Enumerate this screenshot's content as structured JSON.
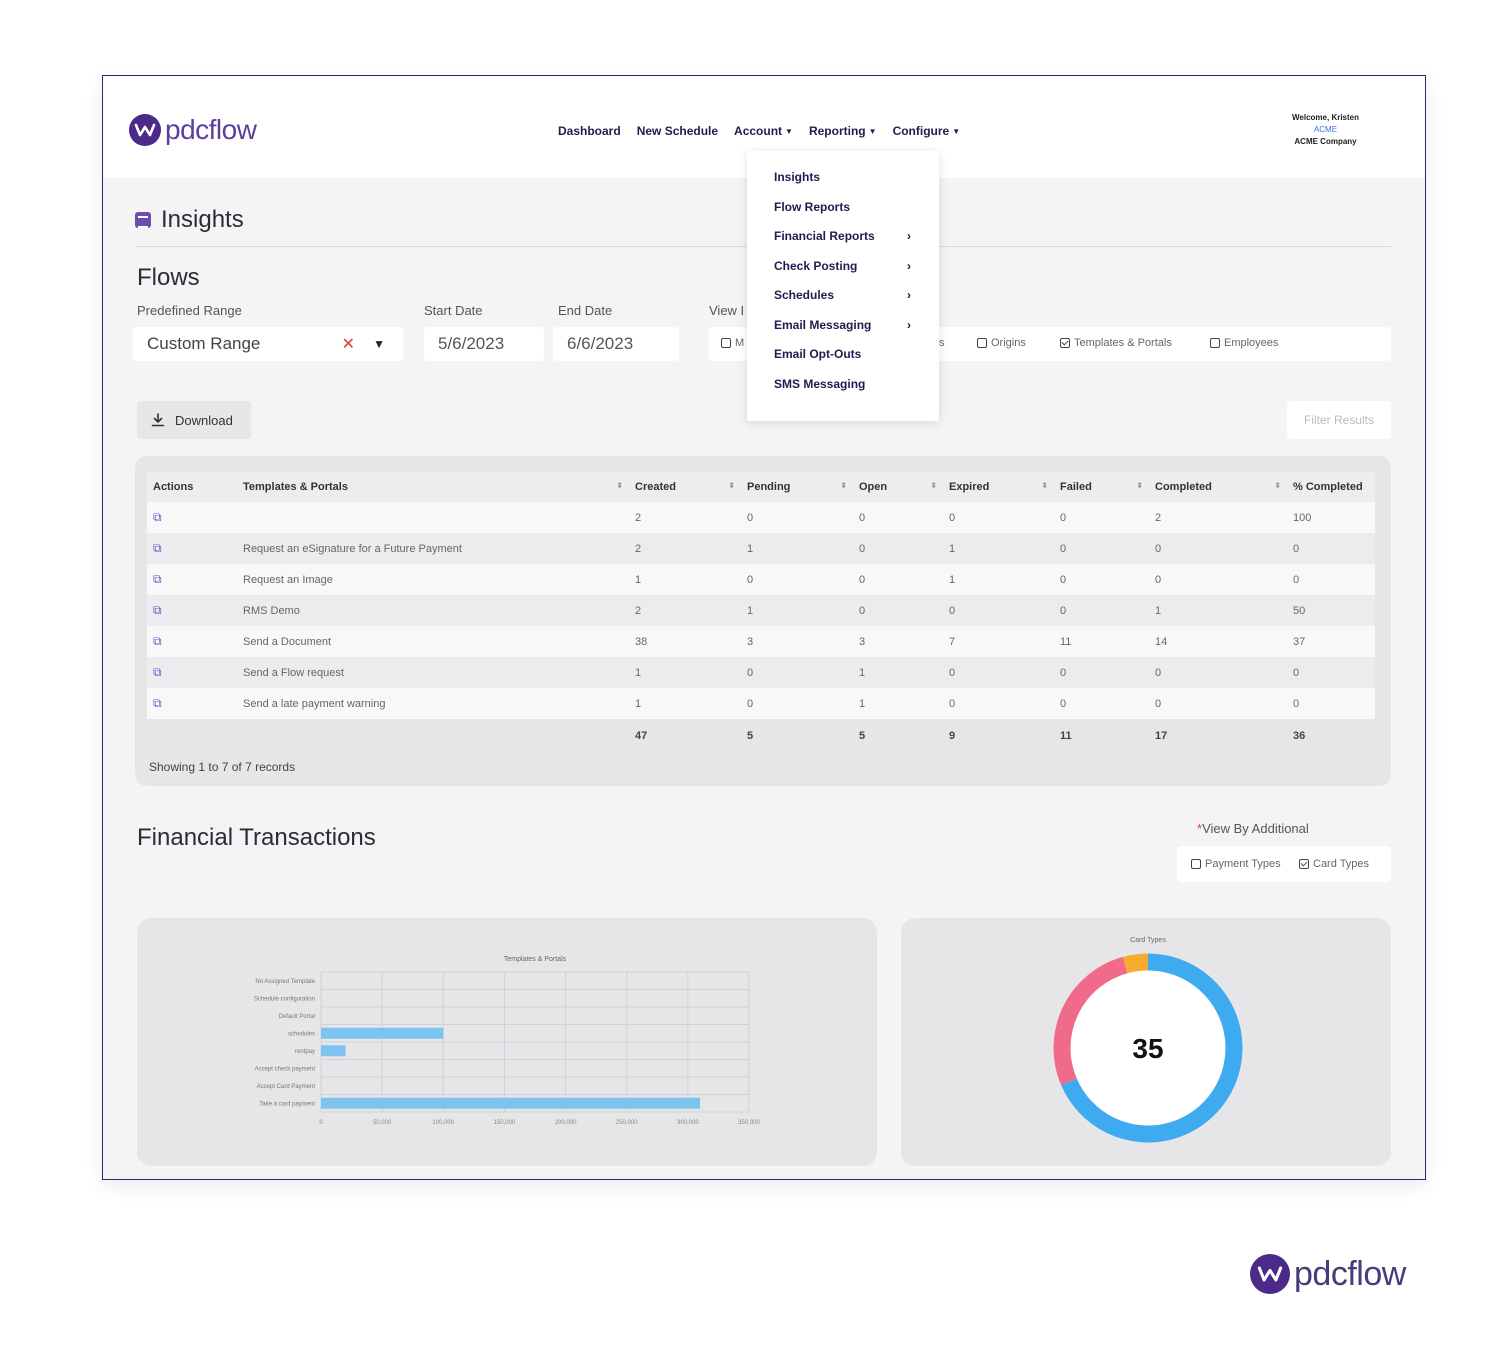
{
  "app": {
    "logo_text": "pdcflow"
  },
  "nav": {
    "items": [
      {
        "label": "Dashboard",
        "caret": false
      },
      {
        "label": "New Schedule",
        "caret": false
      },
      {
        "label": "Account",
        "caret": true
      },
      {
        "label": "Reporting",
        "caret": true
      },
      {
        "label": "Configure",
        "caret": true
      }
    ]
  },
  "user": {
    "welcome": "Welcome, Kristen",
    "acme": "ACME",
    "company": "ACME Company"
  },
  "page": {
    "title": "Insights"
  },
  "flows": {
    "title": "Flows",
    "predefined_label": "Predefined Range",
    "predefined_value": "Custom Range",
    "start_label": "Start Date",
    "start_value": "5/6/2023",
    "end_label": "End Date",
    "end_value": "6/6/2023",
    "view_label": "View I",
    "view_options": [
      {
        "label": "M",
        "checked": false
      },
      {
        "label": "s",
        "checked": false
      },
      {
        "label": "Origins",
        "checked": false
      },
      {
        "label": "Templates & Portals",
        "checked": true
      },
      {
        "label": "Employees",
        "checked": false
      }
    ],
    "download_label": "Download",
    "filter_placeholder": "Filter Results"
  },
  "reporting_menu": {
    "items": [
      {
        "label": "Insights",
        "arrow": ""
      },
      {
        "label": "Flow Reports",
        "arrow": ""
      },
      {
        "label": "Financial Reports",
        "arrow": "›"
      },
      {
        "label": "Check Posting",
        "arrow": "›"
      },
      {
        "label": "Schedules",
        "arrow": "›"
      },
      {
        "label": "Email Messaging",
        "arrow": "›"
      },
      {
        "label": "Email Opt-Outs",
        "arrow": ""
      },
      {
        "label": "SMS Messaging",
        "arrow": ""
      }
    ]
  },
  "table": {
    "headers": [
      "Actions",
      "Templates & Portals",
      "Created",
      "Pending",
      "Open",
      "Expired",
      "Failed",
      "Completed",
      "% Completed"
    ],
    "rows": [
      [
        "",
        "",
        "2",
        "0",
        "0",
        "0",
        "0",
        "2",
        "100"
      ],
      [
        "",
        "Request an eSignature for a Future Payment",
        "2",
        "1",
        "0",
        "1",
        "0",
        "0",
        "0"
      ],
      [
        "",
        "Request an Image",
        "1",
        "0",
        "0",
        "1",
        "0",
        "0",
        "0"
      ],
      [
        "",
        "RMS Demo",
        "2",
        "1",
        "0",
        "0",
        "0",
        "1",
        "50"
      ],
      [
        "",
        "Send a Document",
        "38",
        "3",
        "3",
        "7",
        "11",
        "14",
        "37"
      ],
      [
        "",
        "Send a Flow request",
        "1",
        "0",
        "1",
        "0",
        "0",
        "0",
        "0"
      ],
      [
        "",
        "Send a late payment warning",
        "1",
        "0",
        "1",
        "0",
        "0",
        "0",
        "0"
      ]
    ],
    "totals": [
      "",
      "",
      "47",
      "5",
      "5",
      "9",
      "11",
      "17",
      "36"
    ],
    "showing": "Showing 1 to 7 of 7 records"
  },
  "financial": {
    "title": "Financial Transactions",
    "view_additional": "View By Additional",
    "options": [
      {
        "label": "Payment Types",
        "checked": false
      },
      {
        "label": "Card Types",
        "checked": true
      }
    ]
  },
  "chart_data": [
    {
      "type": "bar",
      "orientation": "horizontal",
      "title": "Templates & Portals",
      "categories": [
        "No Assigned Template",
        "Schedule configuration",
        "Default Portal",
        "schedules",
        "rentpay",
        "Accept check payment",
        "Accept Card Payment",
        "Take a card payment"
      ],
      "values": [
        0,
        0,
        0,
        100000,
        20000,
        0,
        0,
        310000
      ],
      "xlim": [
        0,
        350000
      ],
      "xticks": [
        "0",
        "50,000",
        "100,000",
        "150,000",
        "200,000",
        "250,000",
        "300,000",
        "350,000"
      ],
      "color": "#7cc4ef",
      "grid": true
    },
    {
      "type": "pie",
      "donut": true,
      "title": "Card Types",
      "center_label": "35",
      "slices": [
        {
          "value": 24,
          "color": "#3eaaf0"
        },
        {
          "value": 9.5,
          "color": "#f06a8a"
        },
        {
          "value": 1.5,
          "color": "#f5ac2f"
        }
      ]
    }
  ]
}
